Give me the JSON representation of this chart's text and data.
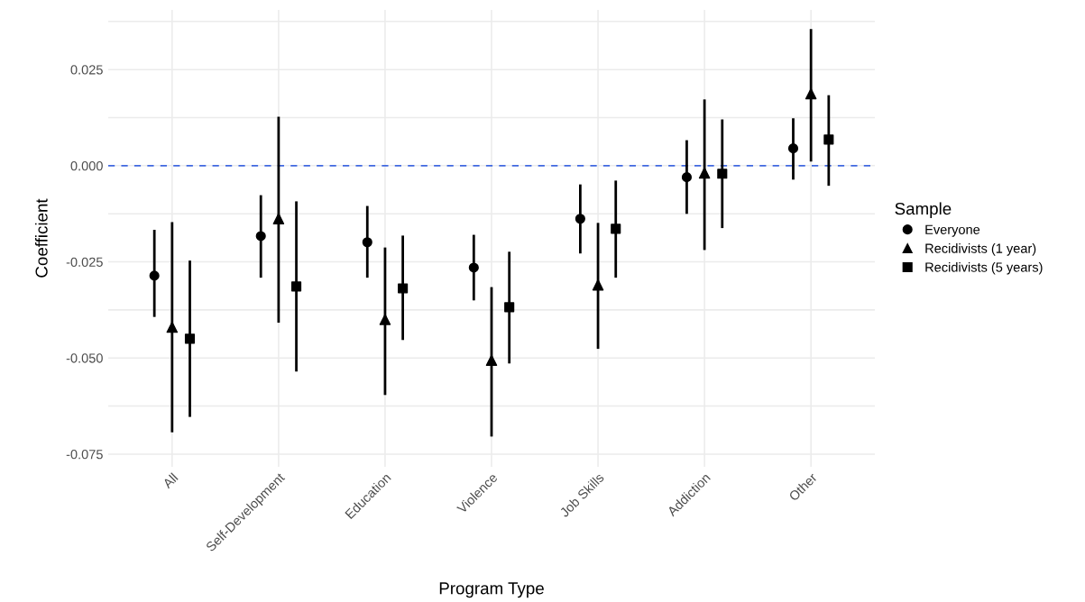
{
  "chart_data": {
    "type": "scatter",
    "xlabel": "Program Type",
    "ylabel": "Coefficient",
    "legend_title": "Sample",
    "legend": "right",
    "categories": [
      "All",
      "Self-Development",
      "Education",
      "Violence",
      "Job Skills",
      "Addiction",
      "Other"
    ],
    "series": [
      {
        "name": "Everyone",
        "color": "#000000",
        "marker": "circle",
        "values": [
          -0.0286,
          -0.0183,
          -0.0199,
          -0.0265,
          -0.0138,
          -0.003,
          0.0045
        ],
        "errors": [
          [
            -0.039,
            -0.017
          ],
          [
            -0.0288,
            -0.008
          ],
          [
            -0.0288,
            -0.0108
          ],
          [
            -0.0347,
            -0.0183
          ],
          [
            -0.0225,
            -0.0052
          ],
          [
            -0.0122,
            0.0063
          ],
          [
            -0.0033,
            0.012
          ]
        ]
      },
      {
        "name": "Recidivists (1 year)",
        "color": "#000000",
        "marker": "triangle",
        "values": [
          -0.042,
          -0.0138,
          -0.04,
          -0.0506,
          -0.031,
          -0.0019,
          0.0187
        ],
        "errors": [
          [
            -0.069,
            -0.015
          ],
          [
            -0.0405,
            0.0124
          ],
          [
            -0.0593,
            -0.0216
          ],
          [
            -0.0701,
            -0.0319
          ],
          [
            -0.0473,
            -0.0152
          ],
          [
            -0.0216,
            0.0169
          ],
          [
            0.0014,
            0.0352
          ]
        ]
      },
      {
        "name": "Recidivists (5 years)",
        "color": "#000000",
        "marker": "square",
        "values": [
          -0.045,
          -0.0314,
          -0.0319,
          -0.0368,
          -0.0164,
          -0.0021,
          0.0068
        ],
        "errors": [
          [
            -0.065,
            -0.025
          ],
          [
            -0.0532,
            -0.0096
          ],
          [
            -0.045,
            -0.0185
          ],
          [
            -0.0511,
            -0.0227
          ],
          [
            -0.0288,
            -0.0042
          ],
          [
            -0.0159,
            0.0117
          ],
          [
            -0.0049,
            0.018
          ]
        ]
      }
    ],
    "ylim": [
      -0.0783,
      0.0405
    ],
    "yticks": [
      {
        "value": -0.075,
        "label": "-0.075"
      },
      {
        "value": -0.0625,
        "label": null
      },
      {
        "value": -0.05,
        "label": "-0.050"
      },
      {
        "value": -0.0375,
        "label": null
      },
      {
        "value": -0.025,
        "label": "-0.025"
      },
      {
        "value": -0.0125,
        "label": null
      },
      {
        "value": 0,
        "label": "0.000"
      },
      {
        "value": 0.0125,
        "label": null
      },
      {
        "value": 0.025,
        "label": "0.025"
      },
      {
        "value": 0.0375,
        "label": null
      }
    ],
    "ref_lines": [
      {
        "axis": "y",
        "value": 0,
        "color": "#4169e1",
        "line_style": "dashed"
      }
    ],
    "grid": true
  }
}
